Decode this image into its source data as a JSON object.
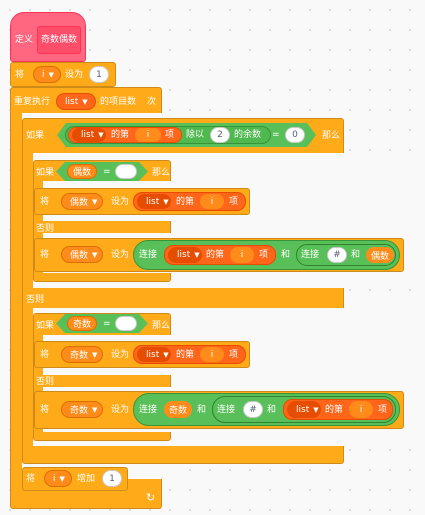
{
  "define": {
    "label": "定义",
    "name": "奇数偶数"
  },
  "set_i": {
    "label1": "将",
    "var": "i",
    "label2": "设为",
    "value": "1"
  },
  "repeat": {
    "label1": "重复执行",
    "list": "list",
    "label2": "的项目数",
    "label3": "次"
  },
  "if_outer": {
    "label_if": "如果",
    "label_then": "那么",
    "label_else": "否则"
  },
  "condition": {
    "list": "list",
    "label_item_of": "的第",
    "index": "i",
    "label_item": "项",
    "label_div": "除以",
    "divisor": "2",
    "label_remainder": "的余数",
    "equals": "=",
    "compare": "0"
  },
  "if_even": {
    "label_if": "如果",
    "var": "偶数",
    "equals": "=",
    "value": "",
    "label_then": "那么",
    "label_else": "否则"
  },
  "set_even_1": {
    "label1": "将",
    "var": "偶数",
    "label2": "设为",
    "list": "list",
    "label_item_of": "的第",
    "index": "i",
    "label_item": "项"
  },
  "set_even_2": {
    "label1": "将",
    "var": "偶数",
    "label2": "设为",
    "join": "连接",
    "list": "list",
    "label_item_of": "的第",
    "index": "i",
    "label_item": "项",
    "label_and": "和",
    "join2": "连接",
    "hash": "#",
    "label_and2": "和",
    "var2": "偶数"
  },
  "if_odd": {
    "label_if": "如果",
    "var": "奇数",
    "equals": "=",
    "value": "",
    "label_then": "那么",
    "label_else": "否则"
  },
  "set_odd_1": {
    "label1": "将",
    "var": "奇数",
    "label2": "设为",
    "list": "list",
    "label_item_of": "的第",
    "index": "i",
    "label_item": "项"
  },
  "set_odd_2": {
    "label1": "将",
    "var": "奇数",
    "label2": "设为",
    "join": "连接",
    "var2": "奇数",
    "label_and": "和",
    "join2": "连接",
    "hash": "#",
    "label_and2": "和",
    "list": "list",
    "label_item_of": "的第",
    "index": "i",
    "label_item": "项"
  },
  "change_i": {
    "label1": "将",
    "var": "i",
    "label2": "增加",
    "value": "1"
  },
  "icons": {
    "dropdown": "▼",
    "loop": "↻"
  },
  "colors": {
    "variables": "#ffab19",
    "variables_dark": "#ff8c1a",
    "lists": "#ff661a",
    "operators": "#59c059",
    "myblocks": "#ff6680"
  }
}
